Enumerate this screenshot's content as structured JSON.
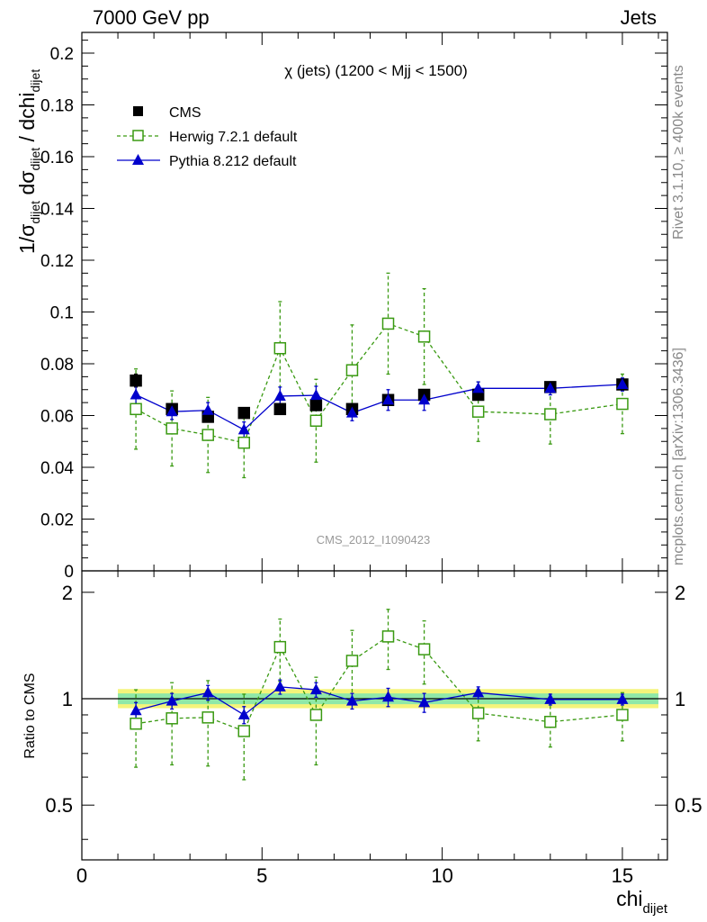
{
  "header": {
    "left": "7000 GeV pp",
    "right": "Jets"
  },
  "side_labels": {
    "rivet": "Rivet 3.1.10, ≥ 400k events",
    "mcplots": "mcplots.cern.ch [arXiv:1306.3436]"
  },
  "colors": {
    "cms": "#000000",
    "herwig": "#3a9a12",
    "pythia": "#0000cc",
    "band_outer": "#f4f47a",
    "band_inner": "#8fe8a8"
  },
  "chart_data": [
    {
      "type": "scatter",
      "panel": "main",
      "title": "χ (jets) (1200 < Mjj < 1500)",
      "annotation": "CMS_2012_I1090423",
      "ylabel": "1/σ_dijet dσ_dijet / dchi_dijet",
      "xlim": [
        0,
        16.25
      ],
      "ylim": [
        0,
        0.208
      ],
      "yticks": [
        0,
        0.02,
        0.04,
        0.06,
        0.08,
        0.1,
        0.12,
        0.14,
        0.16,
        0.18,
        0.2
      ],
      "yticklabels": [
        "0",
        "0.02",
        "0.04",
        "0.06",
        "0.08",
        "0.1",
        "0.12",
        "0.14",
        "0.16",
        "0.18",
        "0.2"
      ],
      "legend_placement": "top-left",
      "x": [
        1.5,
        2.5,
        3.5,
        4.5,
        5.5,
        6.5,
        7.5,
        8.5,
        9.5,
        11,
        13,
        15
      ],
      "series": [
        {
          "name": "CMS",
          "values": [
            0.0735,
            0.0625,
            0.0595,
            0.061,
            0.0625,
            0.064,
            0.0625,
            0.066,
            0.068,
            0.068,
            0.071,
            0.072
          ],
          "errors": [
            0.0025,
            0.002,
            0.002,
            0.002,
            0.002,
            0.002,
            0.002,
            0.002,
            0.002,
            0.002,
            0.0018,
            0.0018
          ]
        },
        {
          "name": "Herwig 7.2.1 default",
          "values": [
            0.0625,
            0.055,
            0.0525,
            0.0495,
            0.086,
            0.058,
            0.0775,
            0.0955,
            0.0905,
            0.0615,
            0.0605,
            0.0645
          ],
          "errors": [
            0.0155,
            0.0145,
            0.0145,
            0.0135,
            0.018,
            0.016,
            0.0175,
            0.0195,
            0.0185,
            0.0115,
            0.0115,
            0.0115
          ]
        },
        {
          "name": "Pythia 8.212 default",
          "values": [
            0.068,
            0.0615,
            0.062,
            0.0545,
            0.0675,
            0.0678,
            0.061,
            0.066,
            0.066,
            0.0705,
            0.0705,
            0.072
          ],
          "errors": [
            0.0035,
            0.003,
            0.003,
            0.003,
            0.0035,
            0.0035,
            0.003,
            0.004,
            0.004,
            0.0025,
            0.0025,
            0.0025
          ]
        }
      ]
    },
    {
      "type": "scatter",
      "panel": "ratio",
      "ylabel": "Ratio to CMS",
      "xlabel": "chi_dijet",
      "xlim": [
        0,
        16.25
      ],
      "ylim": [
        0.35,
        2.3
      ],
      "ylog": true,
      "yticks": [
        0.5,
        1,
        2
      ],
      "yticklabels": [
        "0.5",
        "1",
        "2"
      ],
      "xticks": [
        0,
        5,
        10,
        15
      ],
      "xticklabels": [
        "0",
        "5",
        "10",
        "15"
      ],
      "band_x": [
        1,
        16
      ],
      "band_outer": [
        0.94,
        1.065
      ],
      "band_inner": [
        0.965,
        1.035
      ],
      "x": [
        1.5,
        2.5,
        3.5,
        4.5,
        5.5,
        6.5,
        7.5,
        8.5,
        9.5,
        11,
        13,
        15
      ],
      "series": [
        {
          "name": "Herwig 7.2.1 default",
          "values": [
            0.85,
            0.88,
            0.885,
            0.81,
            1.4,
            0.9,
            1.28,
            1.5,
            1.38,
            0.91,
            0.86,
            0.9
          ],
          "errors": [
            0.21,
            0.23,
            0.24,
            0.22,
            0.28,
            0.25,
            0.28,
            0.29,
            0.28,
            0.15,
            0.13,
            0.14
          ]
        },
        {
          "name": "Pythia 8.212 default",
          "values": [
            0.925,
            0.985,
            1.04,
            0.9,
            1.08,
            1.06,
            0.985,
            1.01,
            0.975,
            1.04,
            0.995,
            0.995
          ],
          "errors": [
            0.05,
            0.05,
            0.05,
            0.05,
            0.05,
            0.05,
            0.05,
            0.06,
            0.06,
            0.04,
            0.035,
            0.035
          ]
        }
      ]
    }
  ]
}
